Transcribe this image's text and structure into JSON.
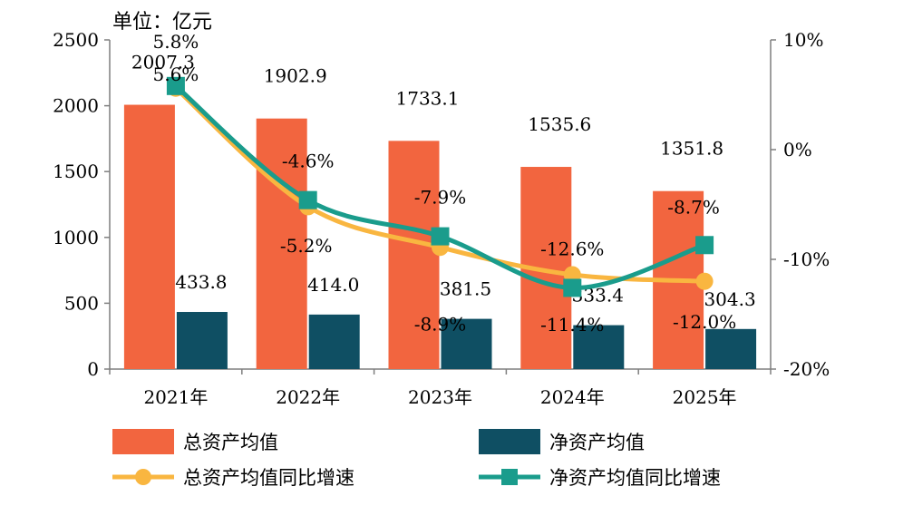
{
  "unit_label": "单位：亿元",
  "chart_data": {
    "type": "bar",
    "categories": [
      "2021年",
      "2022年",
      "2023年",
      "2024年",
      "2025年"
    ],
    "ylim": [
      0,
      2500
    ],
    "yticks": [
      "0",
      "500",
      "1000",
      "1500",
      "2000",
      "2500"
    ],
    "y2lim": [
      -20,
      10
    ],
    "y2ticks": [
      "-20%",
      "-10%",
      "0%",
      "10%"
    ],
    "series": [
      {
        "name": "总资产均值",
        "kind": "bar",
        "axis": "left",
        "color": "#f2653f",
        "values": [
          2007.3,
          1902.9,
          1733.1,
          1535.6,
          1351.8
        ],
        "labels": [
          "2007.3",
          "1902.9",
          "1733.1",
          "1535.6",
          "1351.8"
        ]
      },
      {
        "name": "净资产均值",
        "kind": "bar",
        "axis": "left",
        "color": "#0f4f63",
        "values": [
          433.8,
          414.0,
          381.5,
          333.4,
          304.3
        ],
        "labels": [
          "433.8",
          "414.0",
          "381.5",
          "333.4",
          "304.3"
        ]
      },
      {
        "name": "总资产均值同比增速",
        "kind": "line",
        "axis": "right",
        "color": "#f9b640",
        "marker": "circle",
        "values": [
          5.6,
          -5.2,
          -8.9,
          -11.4,
          -12.0
        ],
        "labels": [
          "5.6%",
          "-5.2%",
          "-8.9%",
          "-11.4%",
          "-12.0%"
        ]
      },
      {
        "name": "净资产均值同比增速",
        "kind": "line",
        "axis": "right",
        "color": "#1a9c8c",
        "marker": "square",
        "values": [
          5.8,
          -4.6,
          -7.9,
          -12.6,
          -8.7
        ],
        "labels": [
          "5.8%",
          "-4.6%",
          "-7.9%",
          "-12.6%",
          "-8.7%"
        ]
      }
    ],
    "legend_position": "bottom",
    "grid": false
  }
}
